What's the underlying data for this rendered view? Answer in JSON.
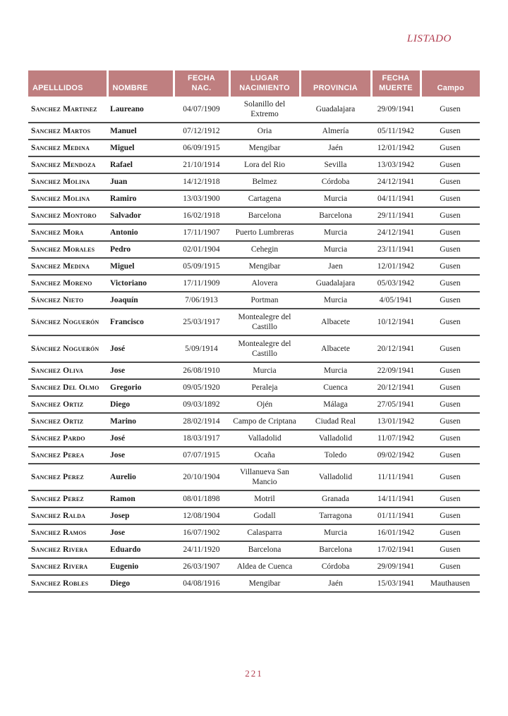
{
  "page": {
    "running_head": "LISTADO",
    "number": "221"
  },
  "colors": {
    "header_bg": "#bf7f80",
    "accent_red": "#b13c4e",
    "rule": "#4c4c4c"
  },
  "table": {
    "headers": [
      "APELLLIDOS",
      "NOMBRE",
      "FECHA\nNAC.",
      "LUGAR\nNACIMIENTO",
      "PROVINCIA",
      "FECHA\nMUERTE",
      "Campo"
    ],
    "rows": [
      {
        "apellidos": "Sanchez Martinez",
        "nombre": "Laureano",
        "fecha_nacimiento": "04/07/1909",
        "lugar_nacimiento": "Solanillo del Extremo",
        "provincia": "Guadalajara",
        "fecha_muerte": "29/09/1941",
        "campo": "Gusen"
      },
      {
        "apellidos": "Sanchez Martos",
        "nombre": "Manuel",
        "fecha_nacimiento": "07/12/1912",
        "lugar_nacimiento": "Oria",
        "provincia": "Almería",
        "fecha_muerte": "05/11/1942",
        "campo": "Gusen"
      },
      {
        "apellidos": "Sanchez Medina",
        "nombre": "Miguel",
        "fecha_nacimiento": "06/09/1915",
        "lugar_nacimiento": "Mengibar",
        "provincia": "Jaén",
        "fecha_muerte": "12/01/1942",
        "campo": "Gusen"
      },
      {
        "apellidos": "Sanchez Mendoza",
        "nombre": "Rafael",
        "fecha_nacimiento": "21/10/1914",
        "lugar_nacimiento": "Lora del Rio",
        "provincia": "Sevilla",
        "fecha_muerte": "13/03/1942",
        "campo": "Gusen"
      },
      {
        "apellidos": "Sanchez Molina",
        "nombre": "Juan",
        "fecha_nacimiento": "14/12/1918",
        "lugar_nacimiento": "Belmez",
        "provincia": "Córdoba",
        "fecha_muerte": "24/12/1941",
        "campo": "Gusen"
      },
      {
        "apellidos": "Sanchez Molina",
        "nombre": "Ramiro",
        "fecha_nacimiento": "13/03/1900",
        "lugar_nacimiento": "Cartagena",
        "provincia": "Murcia",
        "fecha_muerte": "04/11/1941",
        "campo": "Gusen"
      },
      {
        "apellidos": "Sanchez Montoro",
        "nombre": "Salvador",
        "fecha_nacimiento": "16/02/1918",
        "lugar_nacimiento": "Barcelona",
        "provincia": "Barcelona",
        "fecha_muerte": "29/11/1941",
        "campo": "Gusen"
      },
      {
        "apellidos": "Sanchez Mora",
        "nombre": "Antonio",
        "fecha_nacimiento": "17/11/1907",
        "lugar_nacimiento": "Puerto Lumbreras",
        "provincia": "Murcia",
        "fecha_muerte": "24/12/1941",
        "campo": "Gusen"
      },
      {
        "apellidos": "Sanchez Morales",
        "nombre": "Pedro",
        "fecha_nacimiento": "02/01/1904",
        "lugar_nacimiento": "Cehegin",
        "provincia": "Murcia",
        "fecha_muerte": "23/11/1941",
        "campo": "Gusen"
      },
      {
        "apellidos": "Sanchez Medina",
        "nombre": "Miguel",
        "fecha_nacimiento": "05/09/1915",
        "lugar_nacimiento": "Mengibar",
        "provincia": "Jaen",
        "fecha_muerte": "12/01/1942",
        "campo": "Gusen"
      },
      {
        "apellidos": "Sanchez Moreno",
        "nombre": "Victoriano",
        "fecha_nacimiento": "17/11/1909",
        "lugar_nacimiento": "Alovera",
        "provincia": "Guadalajara",
        "fecha_muerte": "05/03/1942",
        "campo": "Gusen"
      },
      {
        "apellidos": "Sánchez Nieto",
        "nombre": "Joaquín",
        "fecha_nacimiento": "7/06/1913",
        "lugar_nacimiento": "Portman",
        "provincia": "Murcia",
        "fecha_muerte": "4/05/1941",
        "campo": "Gusen"
      },
      {
        "apellidos": "Sánchez Noguerón",
        "nombre": "Francisco",
        "fecha_nacimiento": "25/03/1917",
        "lugar_nacimiento": "Montealegre del Castillo",
        "provincia": "Albacete",
        "fecha_muerte": "10/12/1941",
        "campo": "Gusen"
      },
      {
        "apellidos": "Sánchez Noguerón",
        "nombre": "José",
        "fecha_nacimiento": "5/09/1914",
        "lugar_nacimiento": "Montealegre del Castillo",
        "provincia": "Albacete",
        "fecha_muerte": "20/12/1941",
        "campo": "Gusen"
      },
      {
        "apellidos": "Sanchez Oliva",
        "nombre": "Jose",
        "fecha_nacimiento": "26/08/1910",
        "lugar_nacimiento": "Murcia",
        "provincia": "Murcia",
        "fecha_muerte": "22/09/1941",
        "campo": "Gusen"
      },
      {
        "apellidos": "Sanchez Del Olmo",
        "nombre": "Gregorio",
        "fecha_nacimiento": "09/05/1920",
        "lugar_nacimiento": "Peraleja",
        "provincia": "Cuenca",
        "fecha_muerte": "20/12/1941",
        "campo": "Gusen"
      },
      {
        "apellidos": "Sanchez Ortiz",
        "nombre": "Diego",
        "fecha_nacimiento": "09/03/1892",
        "lugar_nacimiento": "Ojén",
        "provincia": "Málaga",
        "fecha_muerte": "27/05/1941",
        "campo": "Gusen"
      },
      {
        "apellidos": "Sanchez Ortiz",
        "nombre": "Marino",
        "fecha_nacimiento": "28/02/1914",
        "lugar_nacimiento": "Campo de Criptana",
        "provincia": "Ciudad Real",
        "fecha_muerte": "13/01/1942",
        "campo": "Gusen"
      },
      {
        "apellidos": "Sánchez Pardo",
        "nombre": "José",
        "fecha_nacimiento": "18/03/1917",
        "lugar_nacimiento": "Valladolid",
        "provincia": "Valladolid",
        "fecha_muerte": "11/07/1942",
        "campo": "Gusen"
      },
      {
        "apellidos": "Sanchez Perea",
        "nombre": "Jose",
        "fecha_nacimiento": "07/07/1915",
        "lugar_nacimiento": "Ocaña",
        "provincia": "Toledo",
        "fecha_muerte": "09/02/1942",
        "campo": "Gusen"
      },
      {
        "apellidos": "Sanchez Perez",
        "nombre": "Aurelio",
        "fecha_nacimiento": "20/10/1904",
        "lugar_nacimiento": "Villanueva San Mancio",
        "provincia": "Valladolid",
        "fecha_muerte": "11/11/1941",
        "campo": "Gusen"
      },
      {
        "apellidos": "Sanchez Perez",
        "nombre": "Ramon",
        "fecha_nacimiento": "08/01/1898",
        "lugar_nacimiento": "Motril",
        "provincia": "Granada",
        "fecha_muerte": "14/11/1941",
        "campo": "Gusen"
      },
      {
        "apellidos": "Sanchez Ralda",
        "nombre": "Josep",
        "fecha_nacimiento": "12/08/1904",
        "lugar_nacimiento": "Godall",
        "provincia": "Tarragona",
        "fecha_muerte": "01/11/1941",
        "campo": "Gusen"
      },
      {
        "apellidos": "Sanchez Ramos",
        "nombre": "Jose",
        "fecha_nacimiento": "16/07/1902",
        "lugar_nacimiento": "Calasparra",
        "provincia": "Murcia",
        "fecha_muerte": "16/01/1942",
        "campo": "Gusen"
      },
      {
        "apellidos": "Sanchez Rivera",
        "nombre": "Eduardo",
        "fecha_nacimiento": "24/11/1920",
        "lugar_nacimiento": "Barcelona",
        "provincia": "Barcelona",
        "fecha_muerte": "17/02/1941",
        "campo": "Gusen"
      },
      {
        "apellidos": "Sanchez Rivera",
        "nombre": "Eugenio",
        "fecha_nacimiento": "26/03/1907",
        "lugar_nacimiento": "Aldea de Cuenca",
        "provincia": "Córdoba",
        "fecha_muerte": "29/09/1941",
        "campo": "Gusen"
      },
      {
        "apellidos": "Sanchez Robles",
        "nombre": "Diego",
        "fecha_nacimiento": "04/08/1916",
        "lugar_nacimiento": "Mengibar",
        "provincia": "Jaén",
        "fecha_muerte": "15/03/1941",
        "campo": "Mauthausen"
      }
    ]
  }
}
